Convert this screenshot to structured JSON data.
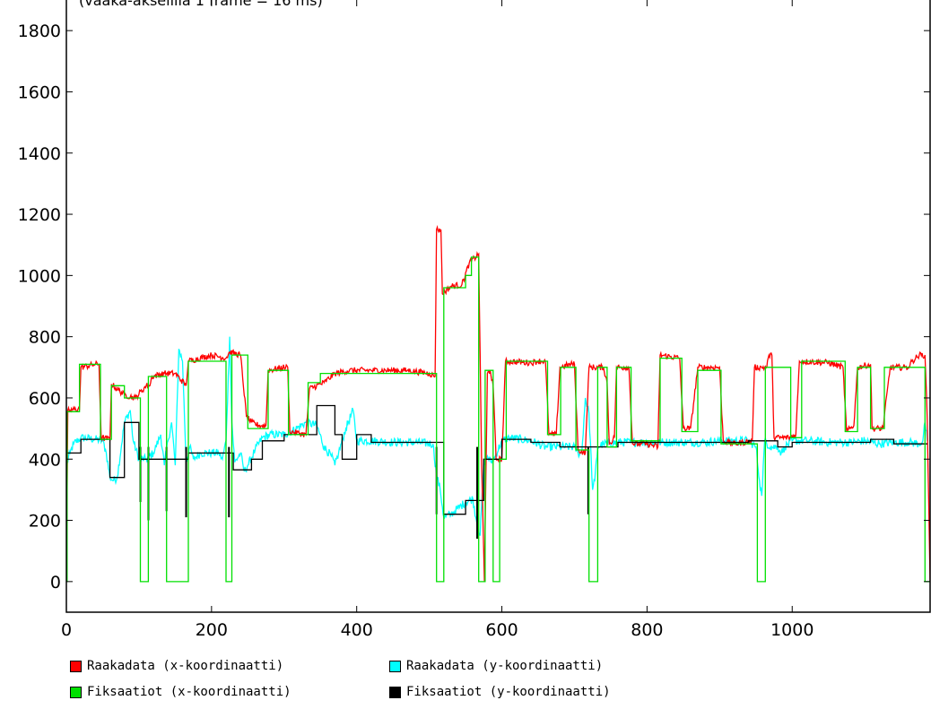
{
  "chart_data": {
    "type": "line",
    "title": "(vaaka-akselilla 1 frame = 16 ms)",
    "xlabel": "",
    "ylabel": "",
    "xlim": [
      0,
      1190
    ],
    "ylim": [
      -100,
      1900
    ],
    "xticks": [
      0,
      200,
      400,
      600,
      800,
      1000
    ],
    "yticks": [
      0,
      200,
      400,
      600,
      800,
      1000,
      1200,
      1400,
      1600,
      1800
    ],
    "grid": false,
    "legend_position": "bottom",
    "series": [
      {
        "name": "Raakadata (x-koordinaatti)",
        "color": "#ff0000",
        "noise": 10,
        "points": [
          [
            0,
            0
          ],
          [
            2,
            560
          ],
          [
            5,
            560
          ],
          [
            18,
            565
          ],
          [
            20,
            700
          ],
          [
            40,
            710
          ],
          [
            45,
            710
          ],
          [
            48,
            470
          ],
          [
            60,
            465
          ],
          [
            62,
            645
          ],
          [
            80,
            610
          ],
          [
            95,
            600
          ],
          [
            110,
            640
          ],
          [
            115,
            640
          ],
          [
            118,
            670
          ],
          [
            135,
            680
          ],
          [
            150,
            680
          ],
          [
            165,
            640
          ],
          [
            168,
            720
          ],
          [
            200,
            740
          ],
          [
            220,
            730
          ],
          [
            225,
            750
          ],
          [
            240,
            740
          ],
          [
            248,
            540
          ],
          [
            255,
            520
          ],
          [
            265,
            510
          ],
          [
            275,
            510
          ],
          [
            278,
            690
          ],
          [
            300,
            700
          ],
          [
            305,
            700
          ],
          [
            308,
            490
          ],
          [
            330,
            480
          ],
          [
            335,
            630
          ],
          [
            355,
            650
          ],
          [
            370,
            680
          ],
          [
            390,
            690
          ],
          [
            420,
            690
          ],
          [
            450,
            690
          ],
          [
            470,
            690
          ],
          [
            500,
            680
          ],
          [
            508,
            670
          ],
          [
            510,
            1150
          ],
          [
            516,
            1150
          ],
          [
            518,
            940
          ],
          [
            530,
            965
          ],
          [
            545,
            970
          ],
          [
            555,
            1040
          ],
          [
            568,
            1070
          ],
          [
            572,
            400
          ],
          [
            576,
            0
          ],
          [
            580,
            680
          ],
          [
            584,
            690
          ],
          [
            588,
            640
          ],
          [
            592,
            400
          ],
          [
            600,
            400
          ],
          [
            605,
            720
          ],
          [
            640,
            715
          ],
          [
            650,
            720
          ],
          [
            660,
            720
          ],
          [
            665,
            480
          ],
          [
            675,
            480
          ],
          [
            680,
            700
          ],
          [
            695,
            710
          ],
          [
            700,
            710
          ],
          [
            705,
            430
          ],
          [
            715,
            420
          ],
          [
            720,
            700
          ],
          [
            740,
            700
          ],
          [
            745,
            650
          ],
          [
            748,
            450
          ],
          [
            755,
            470
          ],
          [
            758,
            700
          ],
          [
            775,
            700
          ],
          [
            780,
            450
          ],
          [
            800,
            450
          ],
          [
            815,
            440
          ],
          [
            818,
            740
          ],
          [
            845,
            730
          ],
          [
            850,
            500
          ],
          [
            860,
            500
          ],
          [
            870,
            700
          ],
          [
            900,
            700
          ],
          [
            905,
            460
          ],
          [
            920,
            450
          ],
          [
            945,
            460
          ],
          [
            948,
            700
          ],
          [
            965,
            700
          ],
          [
            968,
            740
          ],
          [
            972,
            740
          ],
          [
            975,
            470
          ],
          [
            995,
            470
          ],
          [
            1005,
            480
          ],
          [
            1010,
            720
          ],
          [
            1050,
            715
          ],
          [
            1070,
            700
          ],
          [
            1075,
            490
          ],
          [
            1085,
            510
          ],
          [
            1090,
            700
          ],
          [
            1108,
            710
          ],
          [
            1110,
            500
          ],
          [
            1125,
            500
          ],
          [
            1135,
            700
          ],
          [
            1155,
            700
          ],
          [
            1160,
            700
          ],
          [
            1165,
            720
          ],
          [
            1175,
            740
          ],
          [
            1183,
            740
          ],
          [
            1186,
            530
          ],
          [
            1190,
            0
          ]
        ]
      },
      {
        "name": "Raakadata (y-koordinaatti)",
        "color": "#00ffff",
        "noise": 14,
        "points": [
          [
            0,
            380
          ],
          [
            5,
            420
          ],
          [
            10,
            450
          ],
          [
            20,
            470
          ],
          [
            40,
            465
          ],
          [
            50,
            460
          ],
          [
            55,
            420
          ],
          [
            60,
            340
          ],
          [
            65,
            330
          ],
          [
            70,
            340
          ],
          [
            80,
            520
          ],
          [
            88,
            560
          ],
          [
            92,
            460
          ],
          [
            100,
            400
          ],
          [
            110,
            400
          ],
          [
            120,
            420
          ],
          [
            130,
            480
          ],
          [
            135,
            380
          ],
          [
            140,
            460
          ],
          [
            145,
            520
          ],
          [
            150,
            380
          ],
          [
            155,
            760
          ],
          [
            160,
            720
          ],
          [
            165,
            390
          ],
          [
            170,
            440
          ],
          [
            175,
            400
          ],
          [
            185,
            420
          ],
          [
            200,
            420
          ],
          [
            210,
            420
          ],
          [
            215,
            400
          ],
          [
            220,
            460
          ],
          [
            225,
            800
          ],
          [
            228,
            520
          ],
          [
            232,
            390
          ],
          [
            240,
            420
          ],
          [
            245,
            360
          ],
          [
            250,
            380
          ],
          [
            260,
            430
          ],
          [
            270,
            470
          ],
          [
            280,
            480
          ],
          [
            300,
            480
          ],
          [
            310,
            490
          ],
          [
            330,
            520
          ],
          [
            345,
            510
          ],
          [
            355,
            440
          ],
          [
            365,
            410
          ],
          [
            370,
            380
          ],
          [
            375,
            420
          ],
          [
            385,
            500
          ],
          [
            395,
            560
          ],
          [
            400,
            460
          ],
          [
            420,
            460
          ],
          [
            450,
            455
          ],
          [
            480,
            455
          ],
          [
            505,
            450
          ],
          [
            510,
            350
          ],
          [
            515,
            300
          ],
          [
            520,
            210
          ],
          [
            530,
            220
          ],
          [
            540,
            240
          ],
          [
            550,
            260
          ],
          [
            560,
            270
          ],
          [
            565,
            200
          ],
          [
            570,
            150
          ],
          [
            575,
            380
          ],
          [
            580,
            410
          ],
          [
            585,
            390
          ],
          [
            590,
            405
          ],
          [
            600,
            460
          ],
          [
            610,
            470
          ],
          [
            640,
            460
          ],
          [
            660,
            440
          ],
          [
            680,
            440
          ],
          [
            700,
            440
          ],
          [
            705,
            420
          ],
          [
            710,
            420
          ],
          [
            715,
            600
          ],
          [
            720,
            550
          ],
          [
            725,
            300
          ],
          [
            728,
            330
          ],
          [
            732,
            440
          ],
          [
            740,
            450
          ],
          [
            760,
            455
          ],
          [
            780,
            455
          ],
          [
            800,
            455
          ],
          [
            820,
            455
          ],
          [
            850,
            455
          ],
          [
            880,
            455
          ],
          [
            900,
            460
          ],
          [
            940,
            460
          ],
          [
            950,
            440
          ],
          [
            955,
            330
          ],
          [
            958,
            280
          ],
          [
            962,
            460
          ],
          [
            970,
            440
          ],
          [
            980,
            440
          ],
          [
            985,
            420
          ],
          [
            990,
            440
          ],
          [
            1000,
            460
          ],
          [
            1020,
            460
          ],
          [
            1050,
            455
          ],
          [
            1080,
            455
          ],
          [
            1100,
            460
          ],
          [
            1120,
            450
          ],
          [
            1140,
            455
          ],
          [
            1160,
            455
          ],
          [
            1175,
            450
          ],
          [
            1180,
            460
          ],
          [
            1183,
            520
          ],
          [
            1186,
            460
          ]
        ]
      },
      {
        "name": "Fiksaatiot (x-koordinaatti)",
        "color": "#00e000",
        "noise": 0,
        "steps": [
          [
            0,
            0
          ],
          [
            1,
            555
          ],
          [
            18,
            710
          ],
          [
            47,
            465
          ],
          [
            62,
            640
          ],
          [
            80,
            600
          ],
          [
            102,
            0
          ],
          [
            113,
            670
          ],
          [
            138,
            0
          ],
          [
            168,
            720
          ],
          [
            220,
            0
          ],
          [
            228,
            740
          ],
          [
            250,
            500
          ],
          [
            278,
            690
          ],
          [
            306,
            480
          ],
          [
            333,
            650
          ],
          [
            350,
            680
          ],
          [
            510,
            0
          ],
          [
            520,
            960
          ],
          [
            550,
            1000
          ],
          [
            558,
            1060
          ],
          [
            568,
            0
          ],
          [
            577,
            690
          ],
          [
            588,
            0
          ],
          [
            597,
            400
          ],
          [
            606,
            720
          ],
          [
            663,
            480
          ],
          [
            681,
            700
          ],
          [
            702,
            430
          ],
          [
            720,
            0
          ],
          [
            732,
            700
          ],
          [
            745,
            440
          ],
          [
            758,
            700
          ],
          [
            778,
            460
          ],
          [
            818,
            730
          ],
          [
            848,
            490
          ],
          [
            870,
            690
          ],
          [
            902,
            450
          ],
          [
            952,
            0
          ],
          [
            963,
            700
          ],
          [
            998,
            470
          ],
          [
            1013,
            720
          ],
          [
            1073,
            490
          ],
          [
            1090,
            700
          ],
          [
            1108,
            500
          ],
          [
            1127,
            700
          ],
          [
            1182,
            700
          ],
          [
            1183,
            0
          ],
          [
            1190,
            0
          ]
        ]
      },
      {
        "name": "Fiksaatiot (y-koordinaatti)",
        "color": "#000000",
        "noise": 0,
        "steps": [
          [
            0,
            420
          ],
          [
            20,
            465
          ],
          [
            60,
            340
          ],
          [
            80,
            520
          ],
          [
            100,
            400
          ],
          [
            168,
            420
          ],
          [
            230,
            365
          ],
          [
            255,
            400
          ],
          [
            270,
            460
          ],
          [
            300,
            480
          ],
          [
            345,
            575
          ],
          [
            370,
            480
          ],
          [
            380,
            400
          ],
          [
            400,
            480
          ],
          [
            420,
            455
          ],
          [
            520,
            220
          ],
          [
            550,
            265
          ],
          [
            575,
            400
          ],
          [
            600,
            465
          ],
          [
            640,
            455
          ],
          [
            680,
            440
          ],
          [
            715,
            440
          ],
          [
            732,
            440
          ],
          [
            740,
            440
          ],
          [
            760,
            455
          ],
          [
            880,
            455
          ],
          [
            940,
            460
          ],
          [
            980,
            440
          ],
          [
            1000,
            455
          ],
          [
            1108,
            465
          ],
          [
            1140,
            450
          ],
          [
            1186,
            450
          ]
        ],
        "dips": [
          [
            102,
            260
          ],
          [
            113,
            200
          ],
          [
            138,
            230
          ],
          [
            165,
            210
          ],
          [
            224,
            210
          ],
          [
            510,
            220
          ],
          [
            566,
            140
          ],
          [
            719,
            220
          ]
        ]
      }
    ]
  }
}
